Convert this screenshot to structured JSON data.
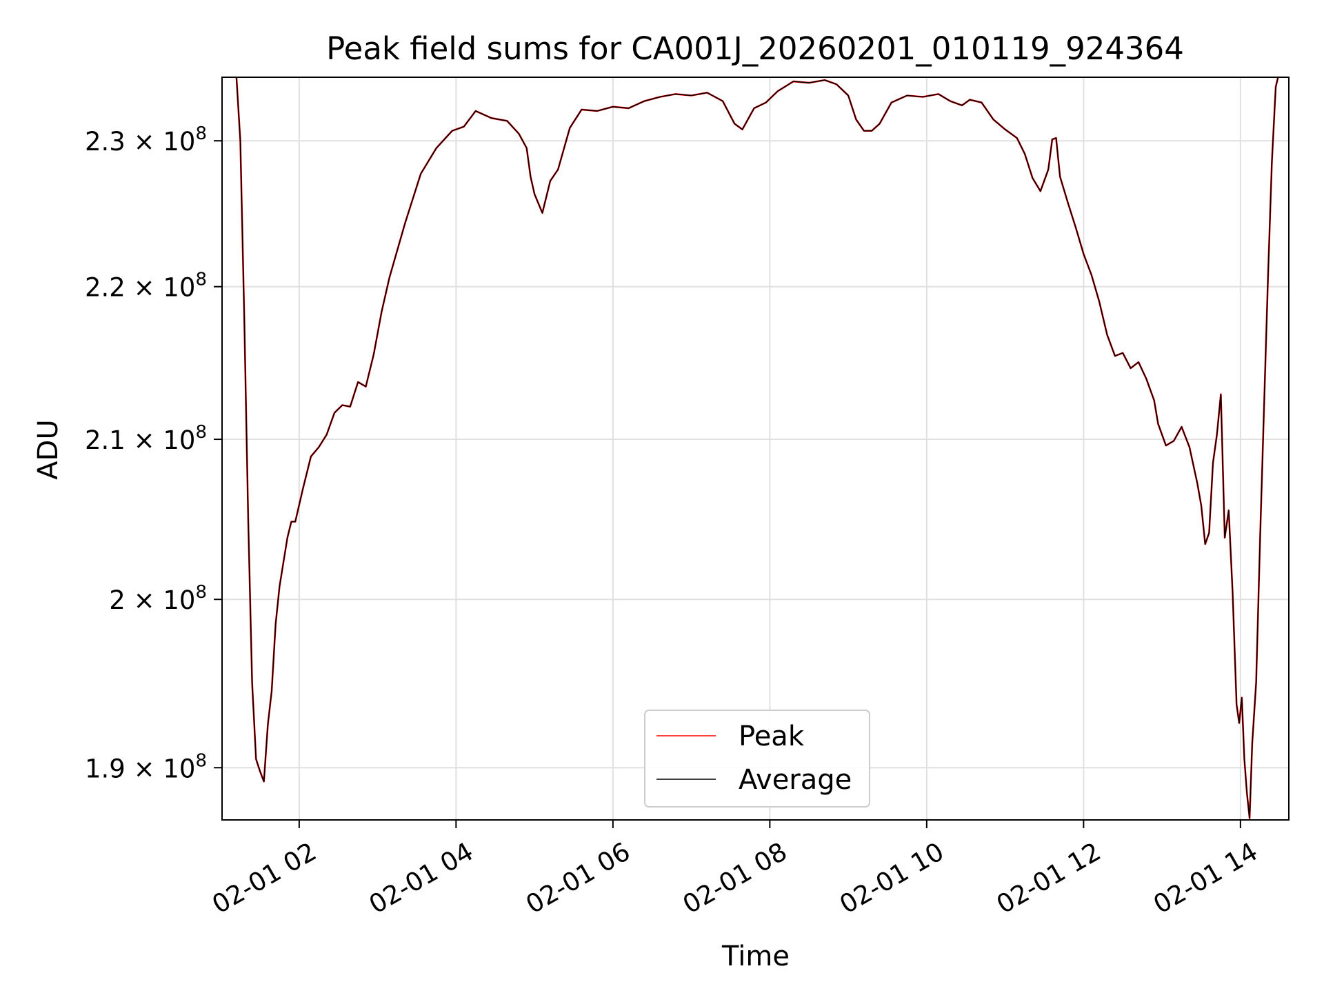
{
  "chart_data": {
    "type": "line",
    "title": "Peak field sums for CA001J_20260201_010119_924364",
    "xlabel": "Time",
    "ylabel": "ADU",
    "y_scale": "log",
    "grid": true,
    "legend_position": "lower-center",
    "xlim": [
      "2026-02-01 01:01",
      "2026-02-01 14:37"
    ],
    "ylim": [
      187000000,
      234500000
    ],
    "x_ticks": [
      {
        "value": "2026-02-01 02:00",
        "label": "02-01 02"
      },
      {
        "value": "2026-02-01 04:00",
        "label": "02-01 04"
      },
      {
        "value": "2026-02-01 06:00",
        "label": "02-01 06"
      },
      {
        "value": "2026-02-01 08:00",
        "label": "02-01 08"
      },
      {
        "value": "2026-02-01 10:00",
        "label": "02-01 10"
      },
      {
        "value": "2026-02-01 12:00",
        "label": "02-01 12"
      },
      {
        "value": "2026-02-01 14:00",
        "label": "02-01 14"
      }
    ],
    "y_ticks": [
      {
        "value": 190000000,
        "mantissa": "1.9",
        "base": "10",
        "exponent": "8"
      },
      {
        "value": 200000000,
        "mantissa": "2",
        "base": "10",
        "exponent": "8"
      },
      {
        "value": 210000000,
        "mantissa": "2.1",
        "base": "10",
        "exponent": "8"
      },
      {
        "value": 220000000,
        "mantissa": "2.2",
        "base": "10",
        "exponent": "8"
      },
      {
        "value": 230000000,
        "mantissa": "2.3",
        "base": "10",
        "exponent": "8"
      }
    ],
    "x": [
      "2026-02-01 01:12",
      "2026-02-01 01:15",
      "2026-02-01 01:18",
      "2026-02-01 01:21",
      "2026-02-01 01:24",
      "2026-02-01 01:27",
      "2026-02-01 01:30",
      "2026-02-01 01:33",
      "2026-02-01 01:36",
      "2026-02-01 01:39",
      "2026-02-01 01:42",
      "2026-02-01 01:45",
      "2026-02-01 01:48",
      "2026-02-01 01:51",
      "2026-02-01 01:54",
      "2026-02-01 01:57",
      "2026-02-01 02:03",
      "2026-02-01 02:09",
      "2026-02-01 02:15",
      "2026-02-01 02:21",
      "2026-02-01 02:27",
      "2026-02-01 02:33",
      "2026-02-01 02:39",
      "2026-02-01 02:45",
      "2026-02-01 02:51",
      "2026-02-01 02:57",
      "2026-02-01 03:03",
      "2026-02-01 03:09",
      "2026-02-01 03:21",
      "2026-02-01 03:33",
      "2026-02-01 03:45",
      "2026-02-01 03:57",
      "2026-02-01 04:06",
      "2026-02-01 04:15",
      "2026-02-01 04:27",
      "2026-02-01 04:39",
      "2026-02-01 04:48",
      "2026-02-01 04:54",
      "2026-02-01 04:57",
      "2026-02-01 05:00",
      "2026-02-01 05:06",
      "2026-02-01 05:12",
      "2026-02-01 05:18",
      "2026-02-01 05:27",
      "2026-02-01 05:36",
      "2026-02-01 05:48",
      "2026-02-01 06:00",
      "2026-02-01 06:12",
      "2026-02-01 06:24",
      "2026-02-01 06:36",
      "2026-02-01 06:48",
      "2026-02-01 07:00",
      "2026-02-01 07:12",
      "2026-02-01 07:24",
      "2026-02-01 07:33",
      "2026-02-01 07:39",
      "2026-02-01 07:48",
      "2026-02-01 07:57",
      "2026-02-01 08:06",
      "2026-02-01 08:18",
      "2026-02-01 08:30",
      "2026-02-01 08:42",
      "2026-02-01 08:51",
      "2026-02-01 09:00",
      "2026-02-01 09:06",
      "2026-02-01 09:12",
      "2026-02-01 09:18",
      "2026-02-01 09:24",
      "2026-02-01 09:33",
      "2026-02-01 09:45",
      "2026-02-01 09:57",
      "2026-02-01 10:09",
      "2026-02-01 10:18",
      "2026-02-01 10:27",
      "2026-02-01 10:33",
      "2026-02-01 10:42",
      "2026-02-01 10:51",
      "2026-02-01 11:00",
      "2026-02-01 11:09",
      "2026-02-01 11:15",
      "2026-02-01 11:21",
      "2026-02-01 11:27",
      "2026-02-01 11:33",
      "2026-02-01 11:36",
      "2026-02-01 11:39",
      "2026-02-01 11:42",
      "2026-02-01 11:48",
      "2026-02-01 11:54",
      "2026-02-01 12:00",
      "2026-02-01 12:06",
      "2026-02-01 12:12",
      "2026-02-01 12:18",
      "2026-02-01 12:24",
      "2026-02-01 12:30",
      "2026-02-01 12:36",
      "2026-02-01 12:42",
      "2026-02-01 12:48",
      "2026-02-01 12:54",
      "2026-02-01 12:57",
      "2026-02-01 13:03",
      "2026-02-01 13:09",
      "2026-02-01 13:15",
      "2026-02-01 13:21",
      "2026-02-01 13:27",
      "2026-02-01 13:30",
      "2026-02-01 13:33",
      "2026-02-01 13:36",
      "2026-02-01 13:39",
      "2026-02-01 13:42",
      "2026-02-01 13:45",
      "2026-02-01 13:48",
      "2026-02-01 13:51",
      "2026-02-01 13:54",
      "2026-02-01 13:57",
      "2026-02-01 13:59",
      "2026-02-01 14:01",
      "2026-02-01 14:03",
      "2026-02-01 14:05",
      "2026-02-01 14:07",
      "2026-02-01 14:09",
      "2026-02-01 14:12",
      "2026-02-01 14:15",
      "2026-02-01 14:18",
      "2026-02-01 14:21",
      "2026-02-01 14:24",
      "2026-02-01 14:27",
      "2026-02-01 14:30",
      "2026-02-01 14:34"
    ],
    "series": [
      {
        "name": "Peak",
        "color": "#ff0000",
        "values": [
          234500000,
          230000000,
          218000000,
          205000000,
          195000000,
          190500000,
          189800000,
          189200000,
          192500000,
          194500000,
          198500000,
          200800000,
          202300000,
          203800000,
          204800000,
          204800000,
          206900000,
          208900000,
          209500000,
          210300000,
          211700000,
          212200000,
          212100000,
          213700000,
          213400000,
          215500000,
          218300000,
          220600000,
          224300000,
          227700000,
          229500000,
          230700000,
          231000000,
          232100000,
          231600000,
          231400000,
          230500000,
          229500000,
          227500000,
          226300000,
          225000000,
          227200000,
          228000000,
          230900000,
          232200000,
          232100000,
          232400000,
          232300000,
          232800000,
          233100000,
          233300000,
          233200000,
          233400000,
          232800000,
          231200000,
          230800000,
          232300000,
          232700000,
          233500000,
          234200000,
          234100000,
          234300000,
          234000000,
          233200000,
          231500000,
          230700000,
          230700000,
          231200000,
          232700000,
          233200000,
          233100000,
          233300000,
          232800000,
          232500000,
          232900000,
          232700000,
          231500000,
          230800000,
          230200000,
          229100000,
          227400000,
          226500000,
          228000000,
          230100000,
          230200000,
          227500000,
          225700000,
          224000000,
          222200000,
          220800000,
          219000000,
          216800000,
          215400000,
          215600000,
          214600000,
          215000000,
          213900000,
          212500000,
          211000000,
          209600000,
          209900000,
          210800000,
          209500000,
          207200000,
          205800000,
          203400000,
          204100000,
          208500000,
          210300000,
          212900000,
          203800000,
          205500000,
          200400000,
          193700000,
          192600000,
          194100000,
          190500000,
          188500000,
          187100000,
          191400000,
          195000000,
          203700000,
          212000000,
          220500000,
          228500000,
          233800000,
          235000000,
          234800000
        ]
      },
      {
        "name": "Average",
        "color": "#000000",
        "values": [
          234500000,
          230000000,
          218000000,
          205000000,
          195000000,
          190500000,
          189800000,
          189200000,
          192500000,
          194500000,
          198500000,
          200800000,
          202300000,
          203800000,
          204800000,
          204800000,
          206900000,
          208900000,
          209500000,
          210300000,
          211700000,
          212200000,
          212100000,
          213700000,
          213400000,
          215500000,
          218300000,
          220600000,
          224300000,
          227700000,
          229500000,
          230700000,
          231000000,
          232100000,
          231600000,
          231400000,
          230500000,
          229500000,
          227500000,
          226300000,
          225000000,
          227200000,
          228000000,
          230900000,
          232200000,
          232100000,
          232400000,
          232300000,
          232800000,
          233100000,
          233300000,
          233200000,
          233400000,
          232800000,
          231200000,
          230800000,
          232300000,
          232700000,
          233500000,
          234200000,
          234100000,
          234300000,
          234000000,
          233200000,
          231500000,
          230700000,
          230700000,
          231200000,
          232700000,
          233200000,
          233100000,
          233300000,
          232800000,
          232500000,
          232900000,
          232700000,
          231500000,
          230800000,
          230200000,
          229100000,
          227400000,
          226500000,
          228000000,
          230100000,
          230200000,
          227500000,
          225700000,
          224000000,
          222200000,
          220800000,
          219000000,
          216800000,
          215400000,
          215600000,
          214600000,
          215000000,
          213900000,
          212500000,
          211000000,
          209600000,
          209900000,
          210800000,
          209500000,
          207200000,
          205800000,
          203400000,
          204100000,
          208500000,
          210300000,
          212900000,
          203800000,
          205500000,
          200400000,
          193700000,
          192600000,
          194100000,
          190500000,
          188500000,
          187100000,
          191400000,
          195000000,
          203700000,
          212000000,
          220500000,
          228500000,
          233800000,
          235000000,
          234800000
        ]
      }
    ]
  }
}
